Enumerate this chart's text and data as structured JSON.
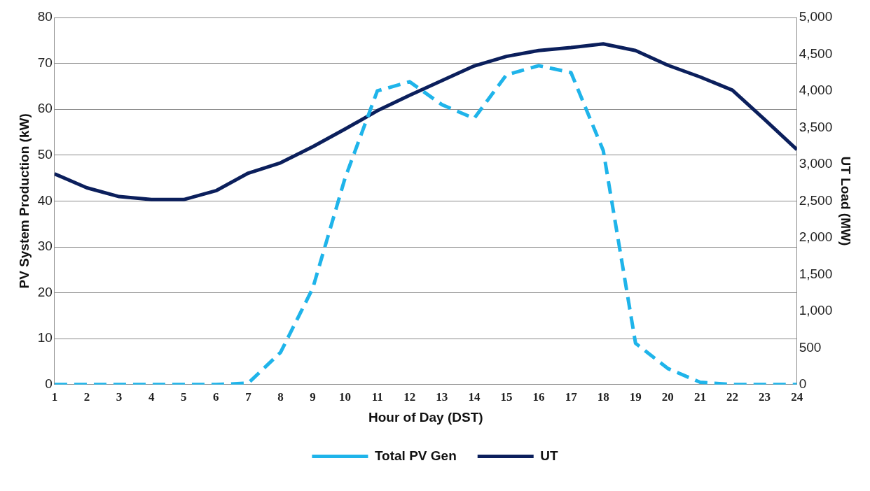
{
  "chart_data": {
    "type": "line",
    "xlabel": "Hour of Day (DST)",
    "ylabel": "PV System Production (kW)",
    "y2label": "UT Load (MW)",
    "x": [
      1,
      2,
      3,
      4,
      5,
      6,
      7,
      8,
      9,
      10,
      11,
      12,
      13,
      14,
      15,
      16,
      17,
      18,
      19,
      20,
      21,
      22,
      23,
      24
    ],
    "xlim": [
      1,
      24
    ],
    "xticks": [
      1,
      2,
      3,
      4,
      5,
      6,
      7,
      8,
      9,
      10,
      11,
      12,
      13,
      14,
      15,
      16,
      17,
      18,
      19,
      20,
      21,
      22,
      23,
      24
    ],
    "ylim": [
      0,
      80
    ],
    "yticks": [
      0,
      10,
      20,
      30,
      40,
      50,
      60,
      70,
      80
    ],
    "y2lim": [
      0,
      5000
    ],
    "y2ticks": [
      {
        "value": 0,
        "label": "0"
      },
      {
        "value": 500,
        "label": "500"
      },
      {
        "value": 1000,
        "label": "1,000"
      },
      {
        "value": 1500,
        "label": "1,500"
      },
      {
        "value": 2000,
        "label": "2,000"
      },
      {
        "value": 2500,
        "label": "2,500"
      },
      {
        "value": 3000,
        "label": "3,000"
      },
      {
        "value": 3500,
        "label": "3,500"
      },
      {
        "value": 4000,
        "label": "4,000"
      },
      {
        "value": 4500,
        "label": "4,500"
      },
      {
        "value": 5000,
        "label": "5,000"
      }
    ],
    "grid": "y",
    "legend": "bottom",
    "marker": "none",
    "series": [
      {
        "name": "Total PV Gen",
        "color": "#1fb4ea",
        "line_style": "dashed",
        "values": [
          0,
          0,
          0,
          0,
          0,
          0,
          0.3,
          7,
          21,
          45,
          64,
          66,
          61,
          58,
          67.5,
          69.5,
          68,
          51,
          9,
          3.5,
          0.5,
          0,
          0,
          0
        ]
      },
      {
        "name": "UT",
        "color": "#0b1f5c",
        "line_style": "solid",
        "axis": "y2",
        "values": [
          2870,
          2680,
          2560,
          2520,
          2520,
          2640,
          2880,
          3020,
          3240,
          3480,
          3730,
          3940,
          4140,
          4340,
          4470,
          4550,
          4590,
          4640,
          4550,
          4350,
          4190,
          4010,
          3610,
          3200
        ]
      }
    ]
  }
}
